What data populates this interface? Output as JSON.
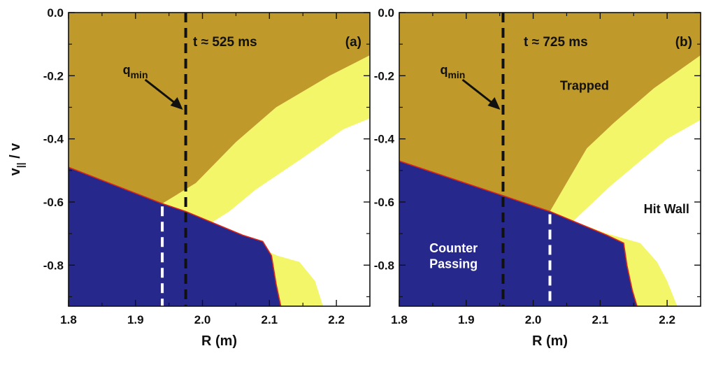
{
  "colors": {
    "trapped": "#bf9a2a",
    "hit_wall": "#ffffff",
    "lost_band": "#f4f66a",
    "counter_passing": "#27288c",
    "boundary": "#d6281f",
    "qmin_line": "#111111",
    "white_line": "#ffffff"
  },
  "y_axis_label": {
    "main": "v",
    "sub": "||",
    "tail": " / v"
  },
  "chart_data": [
    {
      "type": "heatmap",
      "panel": "(a)",
      "time_label": "t ≈ 525 ms",
      "xlabel": "R (m)",
      "xlim": [
        1.8,
        2.25
      ],
      "ylim": [
        -0.93,
        0.0
      ],
      "x_ticks": [
        "1.8",
        "1.9",
        "2.0",
        "2.1",
        "2.2"
      ],
      "x_tick_values": [
        1.8,
        1.9,
        2.0,
        2.1,
        2.2
      ],
      "y_ticks": [
        "0.0",
        "-0.2",
        "-0.4",
        "-0.6",
        "-0.8"
      ],
      "y_tick_values": [
        0.0,
        -0.2,
        -0.4,
        -0.6,
        -0.8
      ],
      "qmin_label": {
        "main": "q",
        "sub": "min"
      },
      "qmin_R": 1.975,
      "white_dashed_R": 1.94,
      "region_labels": [],
      "regions": {
        "passing": [
          [
            1.8,
            -0.49
          ],
          [
            1.94,
            -0.605
          ],
          [
            1.975,
            -0.63
          ],
          [
            2.06,
            -0.705
          ],
          [
            2.09,
            -0.725
          ],
          [
            2.103,
            -0.77
          ],
          [
            2.11,
            -0.86
          ],
          [
            2.117,
            -0.93
          ],
          [
            1.8,
            -0.93
          ]
        ],
        "trapped": [
          [
            1.8,
            0.0
          ],
          [
            2.25,
            0.0
          ],
          [
            2.25,
            -0.135
          ],
          [
            2.19,
            -0.2
          ],
          [
            2.11,
            -0.3
          ],
          [
            2.05,
            -0.41
          ],
          [
            1.99,
            -0.54
          ],
          [
            1.94,
            -0.605
          ],
          [
            1.8,
            -0.49
          ]
        ],
        "lost_band": [
          [
            2.25,
            -0.135
          ],
          [
            2.25,
            -0.335
          ],
          [
            2.21,
            -0.37
          ],
          [
            2.15,
            -0.46
          ],
          [
            2.08,
            -0.56
          ],
          [
            2.04,
            -0.63
          ],
          [
            2.01,
            -0.67
          ],
          [
            2.07,
            -0.73
          ],
          [
            2.112,
            -0.77
          ],
          [
            2.145,
            -0.79
          ],
          [
            2.168,
            -0.85
          ],
          [
            2.18,
            -0.93
          ],
          [
            2.117,
            -0.93
          ],
          [
            2.11,
            -0.86
          ],
          [
            2.103,
            -0.77
          ],
          [
            2.09,
            -0.725
          ],
          [
            2.06,
            -0.705
          ],
          [
            1.975,
            -0.63
          ],
          [
            1.94,
            -0.605
          ],
          [
            1.99,
            -0.54
          ],
          [
            2.05,
            -0.41
          ],
          [
            2.11,
            -0.3
          ],
          [
            2.19,
            -0.2
          ]
        ],
        "boundary": [
          [
            1.8,
            -0.49
          ],
          [
            1.94,
            -0.605
          ],
          [
            1.975,
            -0.63
          ],
          [
            2.06,
            -0.705
          ],
          [
            2.09,
            -0.725
          ],
          [
            2.103,
            -0.77
          ],
          [
            2.11,
            -0.86
          ],
          [
            2.117,
            -0.93
          ]
        ]
      }
    },
    {
      "type": "heatmap",
      "panel": "(b)",
      "time_label": "t ≈ 725 ms",
      "xlabel": "R (m)",
      "xlim": [
        1.8,
        2.25
      ],
      "ylim": [
        -0.93,
        0.0
      ],
      "x_ticks": [
        "1.8",
        "1.9",
        "2.0",
        "2.1",
        "2.2"
      ],
      "x_tick_values": [
        1.8,
        1.9,
        2.0,
        2.1,
        2.2
      ],
      "y_ticks": [
        "0.0",
        "-0.2",
        "-0.4",
        "-0.6",
        "-0.8"
      ],
      "y_tick_values": [
        0.0,
        -0.2,
        -0.4,
        -0.6,
        -0.8
      ],
      "qmin_label": {
        "main": "q",
        "sub": "min"
      },
      "qmin_R": 1.955,
      "white_dashed_R": 2.025,
      "region_labels": [
        {
          "text": "Trapped",
          "lines": [
            "Trapped"
          ],
          "R": 2.04,
          "v": -0.245,
          "color": "dark"
        },
        {
          "text": "Hit Wall",
          "lines": [
            "Hit Wall"
          ],
          "R": 2.165,
          "v": -0.635,
          "color": "dark"
        },
        {
          "text": "Counter Passing",
          "lines": [
            "Counter",
            "Passing"
          ],
          "R": 1.845,
          "v": -0.76,
          "color": "light"
        }
      ],
      "regions": {
        "passing": [
          [
            1.8,
            -0.47
          ],
          [
            1.955,
            -0.58
          ],
          [
            2.025,
            -0.63
          ],
          [
            2.11,
            -0.705
          ],
          [
            2.135,
            -0.73
          ],
          [
            2.14,
            -0.8
          ],
          [
            2.148,
            -0.88
          ],
          [
            2.155,
            -0.93
          ],
          [
            1.8,
            -0.93
          ]
        ],
        "trapped": [
          [
            1.8,
            0.0
          ],
          [
            2.25,
            0.0
          ],
          [
            2.25,
            -0.135
          ],
          [
            2.18,
            -0.24
          ],
          [
            2.12,
            -0.35
          ],
          [
            2.08,
            -0.43
          ],
          [
            2.025,
            -0.63
          ],
          [
            1.955,
            -0.58
          ],
          [
            1.8,
            -0.47
          ]
        ],
        "lost_band": [
          [
            2.25,
            -0.135
          ],
          [
            2.25,
            -0.34
          ],
          [
            2.2,
            -0.4
          ],
          [
            2.16,
            -0.47
          ],
          [
            2.115,
            -0.55
          ],
          [
            2.085,
            -0.61
          ],
          [
            2.06,
            -0.66
          ],
          [
            2.11,
            -0.7
          ],
          [
            2.16,
            -0.73
          ],
          [
            2.185,
            -0.79
          ],
          [
            2.2,
            -0.85
          ],
          [
            2.215,
            -0.93
          ],
          [
            2.155,
            -0.93
          ],
          [
            2.148,
            -0.88
          ],
          [
            2.14,
            -0.8
          ],
          [
            2.135,
            -0.73
          ],
          [
            2.11,
            -0.705
          ],
          [
            2.025,
            -0.63
          ],
          [
            2.08,
            -0.43
          ],
          [
            2.12,
            -0.35
          ],
          [
            2.18,
            -0.24
          ]
        ],
        "boundary": [
          [
            1.8,
            -0.47
          ],
          [
            1.955,
            -0.58
          ],
          [
            2.025,
            -0.63
          ],
          [
            2.11,
            -0.705
          ],
          [
            2.135,
            -0.73
          ],
          [
            2.14,
            -0.8
          ],
          [
            2.148,
            -0.88
          ],
          [
            2.155,
            -0.93
          ]
        ]
      }
    }
  ]
}
